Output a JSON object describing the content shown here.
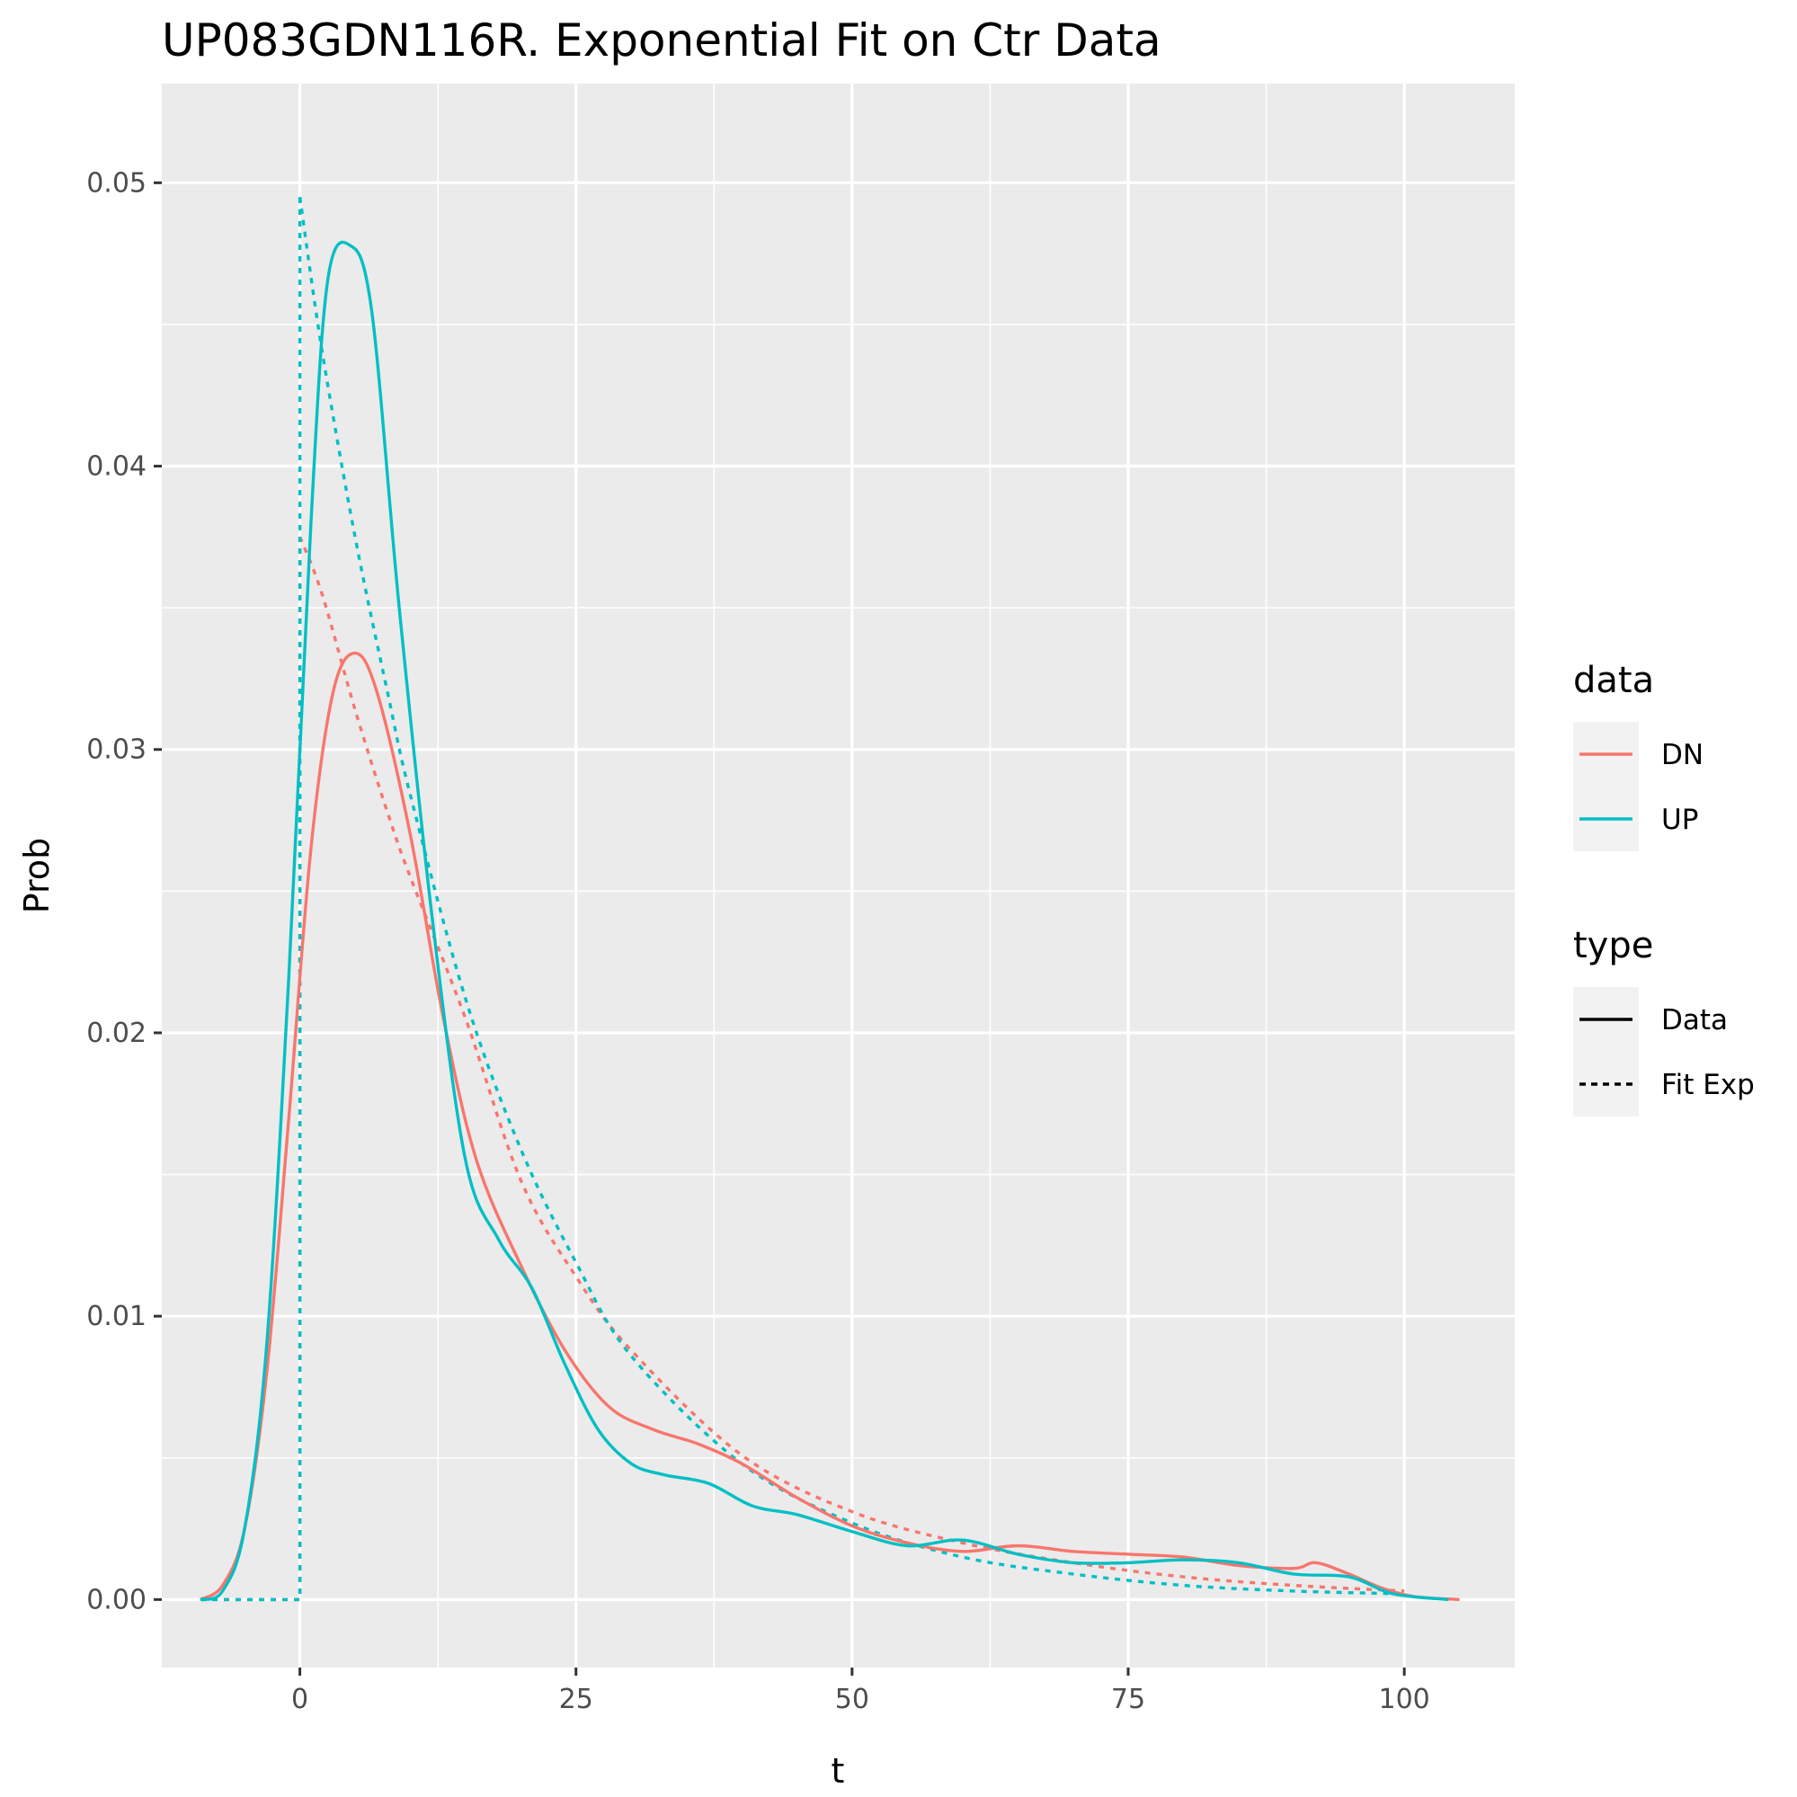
{
  "chart_data": {
    "type": "line",
    "title": "UP083GDN116R. Exponential Fit on Ctr Data",
    "xlabel": "t",
    "ylabel": "Prob",
    "xlim": [
      -12.5,
      110
    ],
    "ylim": [
      -0.0024,
      0.0535
    ],
    "x_ticks": [
      0,
      25,
      50,
      75,
      100
    ],
    "x_tick_labels": [
      "0",
      "25",
      "50",
      "75",
      "100"
    ],
    "y_ticks": [
      0.0,
      0.01,
      0.02,
      0.03,
      0.04,
      0.05
    ],
    "y_tick_labels": [
      "0.00",
      "0.01",
      "0.02",
      "0.03",
      "0.04",
      "0.05"
    ],
    "grid": true,
    "legend_position": "right",
    "legends": [
      {
        "title": "data",
        "entries": [
          {
            "label": "DN",
            "color": "#F8766D",
            "style": "solid"
          },
          {
            "label": "UP",
            "color": "#00BFC4",
            "style": "solid"
          }
        ]
      },
      {
        "title": "type",
        "entries": [
          {
            "label": "Data",
            "color": "#000000",
            "style": "solid"
          },
          {
            "label": "Fit Exp",
            "color": "#000000",
            "style": "dashed"
          }
        ]
      }
    ],
    "series": [
      {
        "name": "DN",
        "type": "Fit Exp",
        "color": "#F8766D",
        "dashed": true,
        "x": [
          0,
          2,
          5,
          8,
          10,
          15,
          20,
          25,
          30,
          40,
          50,
          60,
          70,
          80,
          90,
          100
        ],
        "y": [
          0.0375,
          0.0355,
          0.0314,
          0.0277,
          0.0255,
          0.0205,
          0.0148,
          0.0114,
          0.0088,
          0.0051,
          0.0031,
          0.002,
          0.0013,
          0.0008,
          0.0005,
          0.0003
        ]
      },
      {
        "name": "UP",
        "type": "Fit Exp",
        "color": "#00BFC4",
        "dashed": true,
        "x": [
          0,
          2,
          5,
          8,
          10,
          15,
          20,
          25,
          30,
          40,
          50,
          60,
          70,
          80,
          90,
          100
        ],
        "y": [
          0.0495,
          0.0441,
          0.0375,
          0.0319,
          0.0284,
          0.0212,
          0.0159,
          0.0119,
          0.0086,
          0.0048,
          0.0027,
          0.0015,
          0.0009,
          0.0005,
          0.0003,
          0.0002
        ]
      },
      {
        "name": "DN",
        "type": "Data",
        "color": "#F8766D",
        "dashed": false,
        "x": [
          -9,
          -7,
          -5,
          -3,
          -1,
          1,
          3,
          5,
          7,
          10,
          13,
          16,
          20,
          24,
          28,
          32,
          36,
          40,
          45,
          50,
          55,
          60,
          65,
          70,
          75,
          80,
          85,
          90,
          92,
          95,
          98,
          101,
          105
        ],
        "y": [
          0.0,
          0.0005,
          0.0025,
          0.008,
          0.017,
          0.0265,
          0.032,
          0.0334,
          0.032,
          0.027,
          0.0205,
          0.0155,
          0.0118,
          0.0088,
          0.0068,
          0.006,
          0.0055,
          0.0048,
          0.0036,
          0.0026,
          0.002,
          0.0017,
          0.0019,
          0.0017,
          0.0016,
          0.0015,
          0.0012,
          0.0011,
          0.0013,
          0.0009,
          0.0004,
          0.0001,
          0.0
        ]
      },
      {
        "name": "UP",
        "type": "Data",
        "color": "#00BFC4",
        "dashed": false,
        "x": [
          -9,
          -7,
          -5,
          -3,
          -1,
          1,
          2.5,
          4.5,
          6.5,
          9,
          12,
          15,
          18,
          21,
          24,
          27,
          30,
          33,
          37,
          41,
          45,
          50,
          55,
          60,
          65,
          70,
          75,
          80,
          85,
          90,
          95,
          99,
          104
        ],
        "y": [
          0.0,
          0.0003,
          0.0025,
          0.009,
          0.022,
          0.038,
          0.0465,
          0.0478,
          0.0455,
          0.035,
          0.024,
          0.0155,
          0.0127,
          0.011,
          0.0083,
          0.006,
          0.0048,
          0.0044,
          0.0041,
          0.0033,
          0.003,
          0.0024,
          0.0019,
          0.0021,
          0.0016,
          0.0013,
          0.0013,
          0.0014,
          0.0013,
          0.0009,
          0.0008,
          0.0002,
          0.0
        ]
      }
    ]
  }
}
